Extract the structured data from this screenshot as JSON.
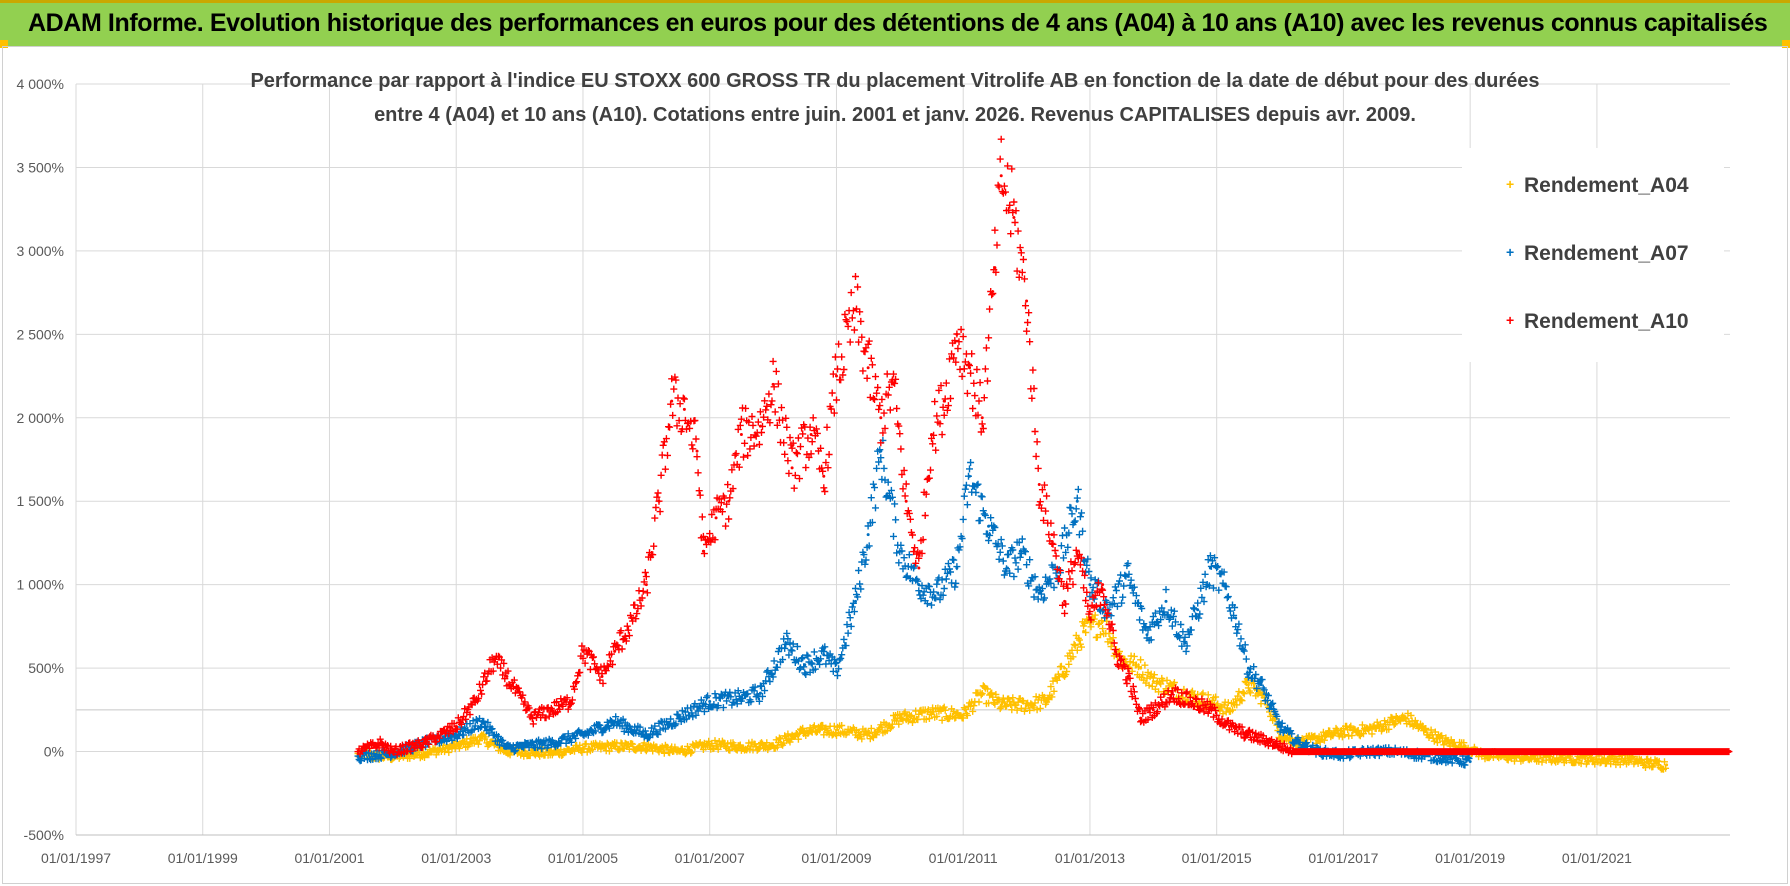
{
  "header": {
    "banner": "ADAM Informe. Evolution historique des performances en euros pour des détentions de 4 ans (A04) à 10 ans (A10) avec les revenus connus capitalisés"
  },
  "colors": {
    "banner_bg": "#92d050",
    "A04": "#ffc000",
    "A07": "#0070c0",
    "A10": "#ff0000"
  },
  "chart_data": {
    "type": "scatter",
    "title_line1": "Performance par rapport à l'indice EU STOXX 600 GROSS TR  du placement Vitrolife AB en fonction de la date de début pour des durées",
    "title_line2": "entre 4 (A04) et 10 ans (A10).  Cotations entre juin. 2001 et janv. 2026. Revenus CAPITALISES depuis avr. 2009.",
    "ylim": [
      -500,
      4000
    ],
    "yticks": [
      -500,
      0,
      500,
      1000,
      1500,
      2000,
      2500,
      3000,
      3500,
      4000
    ],
    "ytick_labels": [
      "-500%",
      "0%",
      "500%",
      "1 000%",
      "1 500%",
      "2 000%",
      "2 500%",
      "3 000%",
      "3 500%",
      "4 000%"
    ],
    "xlim": [
      1997.0,
      2023.1
    ],
    "xticks": [
      1997,
      1999,
      2001,
      2003,
      2005,
      2007,
      2009,
      2011,
      2013,
      2015,
      2017,
      2019,
      2021
    ],
    "xtick_labels": [
      "01/01/1997",
      "01/01/1999",
      "01/01/2001",
      "01/01/2003",
      "01/01/2005",
      "01/01/2007",
      "01/01/2009",
      "01/01/2011",
      "01/01/2013",
      "01/01/2015",
      "01/01/2017",
      "01/01/2019",
      "01/01/2021"
    ],
    "legend_position": "top-right",
    "series": [
      {
        "name": "Rendement_A04",
        "color": "#ffc000",
        "x": [
          2001.45,
          2002.0,
          2002.5,
          2003.0,
          2003.4,
          2003.8,
          2004.5,
          2005.0,
          2005.5,
          2006.0,
          2006.5,
          2007.0,
          2007.5,
          2008.0,
          2008.5,
          2009.0,
          2009.5,
          2010.0,
          2010.5,
          2011.0,
          2011.3,
          2011.6,
          2012.0,
          2012.3,
          2012.6,
          2012.9,
          2013.2,
          2013.5,
          2013.8,
          2014.0,
          2014.3,
          2014.6,
          2014.9,
          2015.2,
          2015.5,
          2015.8,
          2016.0,
          2016.3,
          2016.6,
          2017.0,
          2017.4,
          2017.8,
          2018.0,
          2018.3,
          2018.6,
          2018.9,
          2019.2,
          2019.6,
          2020.0,
          2020.5,
          2021.0,
          2021.5,
          2021.8,
          2022.1
        ],
        "values": [
          -20,
          -30,
          -10,
          30,
          80,
          0,
          -10,
          20,
          30,
          30,
          0,
          40,
          30,
          40,
          120,
          130,
          100,
          200,
          230,
          220,
          350,
          280,
          280,
          300,
          500,
          720,
          780,
          550,
          500,
          420,
          380,
          330,
          300,
          250,
          400,
          300,
          100,
          50,
          80,
          120,
          130,
          180,
          200,
          120,
          60,
          30,
          -20,
          -30,
          -40,
          -40,
          -50,
          -50,
          -70,
          -80
        ]
      },
      {
        "name": "Rendement_A07",
        "color": "#0070c0",
        "x": [
          2001.45,
          2002.0,
          2002.5,
          2003.0,
          2003.4,
          2003.8,
          2004.5,
          2005.0,
          2005.5,
          2006.0,
          2006.5,
          2007.0,
          2007.5,
          2007.8,
          2008.2,
          2008.5,
          2008.8,
          2009.0,
          2009.3,
          2009.5,
          2009.7,
          2010.0,
          2010.3,
          2010.6,
          2010.9,
          2011.1,
          2011.4,
          2011.7,
          2011.9,
          2012.2,
          2012.5,
          2012.8,
          2013.0,
          2013.3,
          2013.6,
          2013.9,
          2014.2,
          2014.5,
          2014.7,
          2014.9,
          2015.1,
          2015.3,
          2015.5,
          2015.7,
          2016.0,
          2016.3,
          2016.6,
          2017.0,
          2017.4,
          2017.8,
          2018.2,
          2018.6,
          2019.0
        ],
        "values": [
          -30,
          -10,
          50,
          100,
          180,
          20,
          50,
          100,
          180,
          100,
          200,
          300,
          320,
          350,
          650,
          520,
          580,
          480,
          900,
          1300,
          1800,
          1200,
          1000,
          950,
          1100,
          1650,
          1350,
          1100,
          1200,
          950,
          1100,
          1500,
          1000,
          850,
          1050,
          700,
          900,
          650,
          850,
          1100,
          1000,
          800,
          500,
          400,
          150,
          50,
          0,
          -20,
          0,
          0,
          -20,
          -40,
          -60
        ]
      },
      {
        "name": "Rendement_A10",
        "color": "#ff0000",
        "x": [
          2001.45,
          2001.8,
          2002.0,
          2002.5,
          2003.0,
          2003.3,
          2003.6,
          2003.8,
          2004.2,
          2004.5,
          2004.8,
          2005.0,
          2005.3,
          2005.5,
          2005.8,
          2006.0,
          2006.2,
          2006.4,
          2006.6,
          2006.8,
          2006.9,
          2007.1,
          2007.3,
          2007.5,
          2007.8,
          2008.0,
          2008.3,
          2008.6,
          2008.8,
          2009.0,
          2009.3,
          2009.5,
          2009.7,
          2009.9,
          2010.1,
          2010.3,
          2010.5,
          2010.7,
          2010.9,
          2011.1,
          2011.3,
          2011.5,
          2011.6,
          2011.8,
          2012.0,
          2012.2,
          2012.4,
          2012.6,
          2012.8,
          2013.0,
          2013.2,
          2013.4,
          2013.6,
          2013.8,
          2014.0,
          2014.3,
          2014.6,
          2014.9,
          2015.2,
          2015.5,
          2015.9,
          2016.2,
          2017.0,
          2018.0,
          2019.0,
          2020.0,
          2021.0,
          2022.0,
          2023.1
        ],
        "values": [
          0,
          50,
          0,
          50,
          150,
          300,
          550,
          450,
          200,
          250,
          300,
          600,
          450,
          600,
          800,
          1000,
          1500,
          2100,
          2050,
          1800,
          1200,
          1400,
          1500,
          1900,
          1950,
          2200,
          1700,
          1900,
          1650,
          2250,
          2650,
          2300,
          2000,
          2200,
          1500,
          1100,
          1900,
          2100,
          2500,
          2300,
          2000,
          2900,
          3450,
          3200,
          2700,
          1600,
          1300,
          900,
          1200,
          800,
          1000,
          600,
          450,
          200,
          250,
          350,
          300,
          250,
          150,
          100,
          50,
          0,
          0,
          0,
          0,
          0,
          0,
          0,
          0
        ]
      }
    ]
  }
}
